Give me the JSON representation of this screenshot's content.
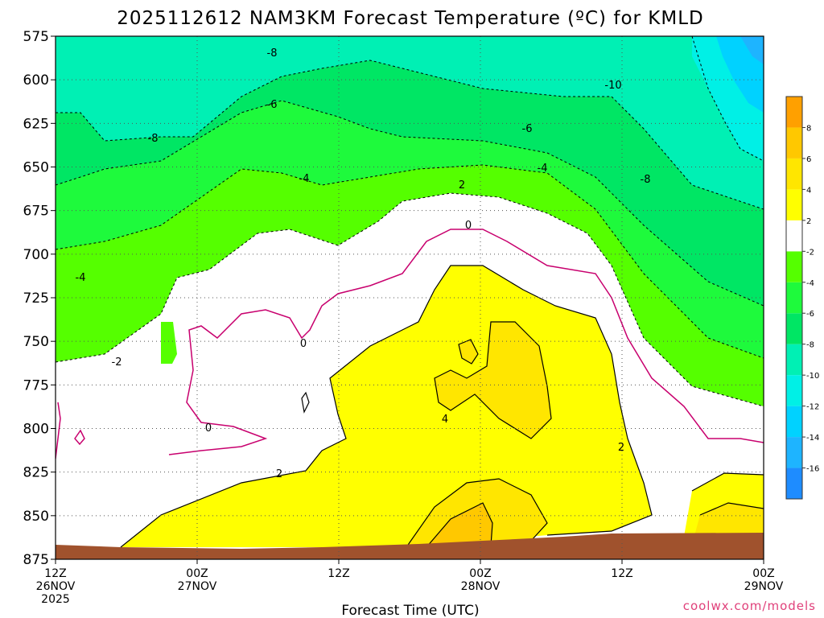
{
  "chart_data": {
    "type": "heatmap",
    "title": "2025112612 NAM3KM Forecast Temperature (ºC) for KMLD",
    "xlabel": "Forecast Time (UTC)",
    "ylabel": "",
    "credit": "coolwx.com/models",
    "x_range_hours": [
      0,
      60
    ],
    "x_ticks": [
      {
        "hour": 0,
        "lines": [
          "12Z",
          "26NOV",
          "2025"
        ]
      },
      {
        "hour": 12,
        "lines": [
          "00Z",
          "27NOV"
        ]
      },
      {
        "hour": 24,
        "lines": [
          "12Z"
        ]
      },
      {
        "hour": 36,
        "lines": [
          "00Z",
          "28NOV"
        ]
      },
      {
        "hour": 48,
        "lines": [
          "12Z"
        ]
      },
      {
        "hour": 60,
        "lines": [
          "00Z",
          "29NOV"
        ]
      }
    ],
    "y_range": [
      875,
      575
    ],
    "y_ticks": [
      575,
      600,
      625,
      650,
      675,
      700,
      725,
      750,
      775,
      800,
      825,
      850,
      875
    ],
    "grid": true,
    "colorbar": {
      "placement": "right",
      "levels": [
        -18,
        -16,
        -14,
        -12,
        -10,
        -8,
        -6,
        -4,
        -2,
        2,
        4,
        6,
        8,
        10
      ],
      "labels": [
        -16,
        -14,
        -12,
        -10,
        -8,
        -6,
        -4,
        -2,
        2,
        4,
        6,
        8
      ],
      "colors": [
        "#1e8cff",
        "#1eb4ff",
        "#00d2ff",
        "#00f0e6",
        "#00f0b4",
        "#00e664",
        "#1efa3c",
        "#55ff00",
        "#ffffff",
        "#ffff00",
        "#ffe600",
        "#ffc800",
        "#ffa000"
      ]
    },
    "contour_labels": [
      "-10",
      "-8",
      "-8",
      "-8",
      "-6",
      "-6",
      "-4",
      "-4",
      "-4",
      "-2",
      "0",
      "0",
      "0",
      "2",
      "2",
      "2",
      "4"
    ],
    "fill_colors": {
      "terrain": "#a0522d",
      "freezing_line": "#c8006e",
      "contour_line": "#000000"
    }
  }
}
